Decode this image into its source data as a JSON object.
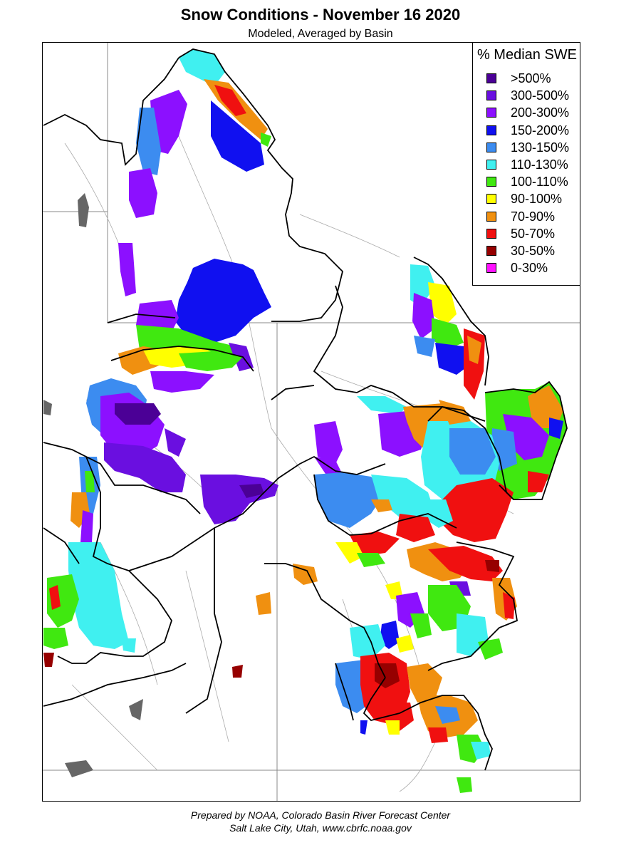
{
  "title": "Snow Conditions - November 16 2020",
  "subtitle": "Modeled, Averaged by Basin",
  "legend": {
    "title": "% Median SWE",
    "items": [
      {
        "label": ">500%",
        "color": "#4b0096"
      },
      {
        "label": "300-500%",
        "color": "#6a0fe0"
      },
      {
        "label": "200-300%",
        "color": "#8c10ff"
      },
      {
        "label": "150-200%",
        "color": "#1010f0"
      },
      {
        "label": "130-150%",
        "color": "#3c8cf0"
      },
      {
        "label": "110-130%",
        "color": "#40f0f0"
      },
      {
        "label": "100-110%",
        "color": "#40e810"
      },
      {
        "label": "90-100%",
        "color": "#ffff00"
      },
      {
        "label": "70-90%",
        "color": "#f09010"
      },
      {
        "label": "50-70%",
        "color": "#f01010"
      },
      {
        "label": "30-50%",
        "color": "#960000"
      },
      {
        "label": "0-30%",
        "color": "#ff10ff"
      }
    ]
  },
  "footer": {
    "line1": "Prepared by NOAA, Colorado Basin River Forecast Center",
    "line2": "Salt Lake City, Utah, www.cbrfc.noaa.gov"
  },
  "colors": {
    "basin_outline": "#000000",
    "state_border": "#888888",
    "river": "#aaaaaa",
    "lake": "#666666"
  }
}
